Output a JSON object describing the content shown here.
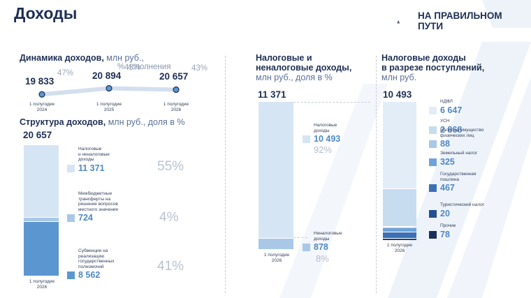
{
  "page": {
    "title": "Доходы"
  },
  "logo": {
    "line1": "НА ПРАВИЛЬНОМ",
    "line2": "ПУТИ"
  },
  "colors": {
    "bar_light": "#d6e5f4",
    "bar_mid": "#a9c8e8",
    "bar_dark": "#5b96d1",
    "navy": "#1e2f55",
    "accent": "#4f87c4"
  },
  "chart_data": [
    {
      "type": "line",
      "title": "Динамика доходов,",
      "title_units": "млн руб.,",
      "subtitle": "% исполнения",
      "categories": [
        "1 полугодие 2024",
        "1 полугодие 2025",
        "1 полугодие 2026"
      ],
      "cat_line1": [
        "1 полугодие",
        "1 полугодие",
        "1 полугодие"
      ],
      "cat_line2": [
        "2024",
        "2025",
        "2026"
      ],
      "values": [
        19833,
        20894,
        20657
      ],
      "value_labels": [
        "19 833",
        "20 894",
        "20 657"
      ],
      "pct_labels": [
        "47%",
        "43%",
        "43%"
      ]
    },
    {
      "type": "bar",
      "title": "Структура доходов,",
      "title_units": "млн руб., доля в %",
      "total_label": "20 657",
      "category_line1": "1 полугодие",
      "category_line2": "2026",
      "segments": [
        {
          "name": "Налоговые и неналоговые доходы",
          "name_lines": [
            "Налоговые",
            "и неналоговые",
            "доходы"
          ],
          "value": 11371,
          "value_label": "11 371",
          "pct": "55%",
          "color": "#d6e5f4"
        },
        {
          "name": "Межбюджетные трансферты на решение вопросов местного значения",
          "name_lines": [
            "Межбюджетные",
            "трансферты на",
            "решение вопросов",
            "местного значения"
          ],
          "value": 724,
          "value_label": "724",
          "pct": "4%",
          "color": "#a9c8e8"
        },
        {
          "name": "Субвенции на реализацию государственных полномочий",
          "name_lines": [
            "Субвенции на",
            "реализацию",
            "государственных",
            "полномочий"
          ],
          "value": 8562,
          "value_label": "8 562",
          "pct": "41%",
          "color": "#5b96d1"
        }
      ]
    },
    {
      "type": "bar",
      "title_lines": [
        "Налоговые и",
        "неналоговые доходы,"
      ],
      "title_units": "млн руб., доля в %",
      "total_label": "11 371",
      "category_line1": "1 полугодие",
      "category_line2": "2026",
      "segments": [
        {
          "name": "Налоговые доходы",
          "name_lines": [
            "Налоговые",
            "доходы"
          ],
          "value": 10493,
          "value_label": "10 493",
          "pct": "92%",
          "color": "#d6e5f4"
        },
        {
          "name": "Неналоговые доходы",
          "name_lines": [
            "Неналоговые",
            "доходы"
          ],
          "value": 878,
          "value_label": "878",
          "pct": "8%",
          "color": "#a9c8e8"
        }
      ]
    },
    {
      "type": "bar",
      "title_lines": [
        "Налоговые доходы",
        "в разрезе поступлений,"
      ],
      "title_units": "млн руб.",
      "total_label": "10 493",
      "category_line1": "1 полугодие",
      "category_line2": "2026",
      "segments": [
        {
          "name": "НДФЛ",
          "name_lines": [
            "НДФЛ"
          ],
          "value": 6647,
          "value_label": "6 647",
          "color": "#e3edf8"
        },
        {
          "name": "УСН",
          "name_lines": [
            "УСН"
          ],
          "value": 2868,
          "value_label": "2 868",
          "color": "#c8dcf0"
        },
        {
          "name": "Налог на имущество физических лиц",
          "name_lines": [
            "Налог на имущество",
            "физических лиц"
          ],
          "value": 88,
          "value_label": "88",
          "color": "#a9c8e8"
        },
        {
          "name": "Земельный налог",
          "name_lines": [
            "Земельный налог"
          ],
          "value": 325,
          "value_label": "325",
          "color": "#6fa3d8"
        },
        {
          "name": "Государственная пошлина",
          "name_lines": [
            "Государственная",
            "пошлина"
          ],
          "value": 467,
          "value_label": "467",
          "color": "#3c70b5"
        },
        {
          "name": "Туристический налог",
          "name_lines": [
            "Туристический налог"
          ],
          "value": 20,
          "value_label": "20",
          "color": "#234f93"
        },
        {
          "name": "Прочие",
          "name_lines": [
            "Прочие"
          ],
          "value": 78,
          "value_label": "78",
          "color": "#1a2f5c"
        }
      ]
    }
  ]
}
